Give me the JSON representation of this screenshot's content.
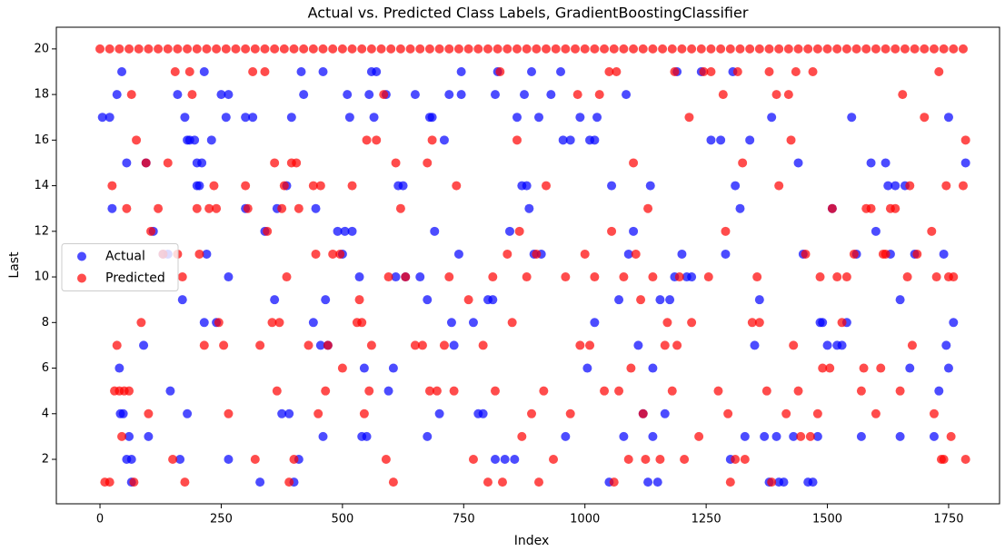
{
  "chart_data": {
    "type": "scatter",
    "title": "Actual vs. Predicted Class Labels, GradientBoostingClassifier",
    "x_label": "Index",
    "y_label": "Last",
    "xlim": [
      -90,
      1855
    ],
    "ylim": [
      0.05,
      20.95
    ],
    "xticks": [
      0,
      250,
      500,
      750,
      1000,
      1250,
      1500,
      1750
    ],
    "yticks": [
      2,
      4,
      6,
      8,
      10,
      12,
      14,
      16,
      18,
      20
    ],
    "legend": "center left",
    "alpha": 0.7,
    "series": [
      {
        "name": "Actual",
        "color": "#0000ff",
        "x": [
          5,
          20,
          25,
          35,
          40,
          45,
          42,
          48,
          55,
          55,
          60,
          65,
          65,
          90,
          95,
          100,
          110,
          130,
          140,
          145,
          160,
          165,
          170,
          175,
          180,
          180,
          185,
          195,
          200,
          200,
          205,
          210,
          215,
          215,
          220,
          230,
          240,
          250,
          260,
          265,
          265,
          265,
          300,
          300,
          315,
          330,
          340,
          360,
          365,
          375,
          385,
          390,
          395,
          400,
          410,
          415,
          420,
          440,
          445,
          455,
          460,
          460,
          465,
          470,
          490,
          500,
          505,
          510,
          515,
          520,
          535,
          540,
          545,
          550,
          555,
          560,
          565,
          570,
          590,
          595,
          605,
          610,
          615,
          625,
          630,
          650,
          660,
          675,
          675,
          680,
          685,
          690,
          700,
          710,
          720,
          725,
          730,
          740,
          745,
          745,
          770,
          780,
          790,
          800,
          810,
          815,
          815,
          820,
          835,
          845,
          855,
          860,
          870,
          875,
          880,
          885,
          890,
          895,
          905,
          910,
          930,
          950,
          955,
          960,
          970,
          990,
          1010,
          1020,
          1020,
          1025,
          1005,
          1050,
          1055,
          1070,
          1080,
          1085,
          1090,
          1100,
          1110,
          1120,
          1130,
          1135,
          1140,
          1140,
          1150,
          1155,
          1165,
          1175,
          1185,
          1190,
          1200,
          1210,
          1220,
          1240,
          1260,
          1280,
          1290,
          1300,
          1305,
          1310,
          1320,
          1330,
          1340,
          1350,
          1360,
          1370,
          1380,
          1385,
          1395,
          1400,
          1410,
          1430,
          1440,
          1450,
          1460,
          1470,
          1480,
          1485,
          1490,
          1500,
          1510,
          1520,
          1530,
          1540,
          1550,
          1560,
          1570,
          1590,
          1600,
          1620,
          1625,
          1630,
          1640,
          1650,
          1650,
          1660,
          1670,
          1680,
          1720,
          1730,
          1740,
          1745,
          1750,
          1750,
          1760,
          1785
        ],
        "values": [
          17,
          17,
          13,
          18,
          6,
          19,
          4,
          4,
          15,
          2,
          3,
          2,
          1,
          7,
          15,
          3,
          12,
          11,
          11,
          5,
          18,
          2,
          9,
          17,
          16,
          4,
          16,
          16,
          14,
          15,
          14,
          15,
          19,
          8,
          11,
          16,
          8,
          18,
          17,
          18,
          10,
          2,
          17,
          13,
          17,
          1,
          12,
          9,
          13,
          4,
          14,
          4,
          17,
          1,
          2,
          19,
          18,
          8,
          13,
          7,
          19,
          3,
          9,
          7,
          12,
          11,
          12,
          18,
          17,
          12,
          10,
          3,
          6,
          3,
          18,
          19,
          17,
          19,
          18,
          5,
          6,
          10,
          14,
          14,
          10,
          18,
          10,
          9,
          3,
          17,
          17,
          12,
          4,
          16,
          18,
          8,
          7,
          11,
          19,
          18,
          8,
          4,
          4,
          9,
          9,
          18,
          2,
          19,
          2,
          12,
          2,
          17,
          14,
          18,
          14,
          13,
          19,
          11,
          17,
          11,
          18,
          19,
          16,
          3,
          16,
          17,
          16,
          16,
          8,
          17,
          6,
          1,
          14,
          9,
          3,
          18,
          11,
          12,
          7,
          4,
          1,
          14,
          6,
          3,
          1,
          9,
          4,
          9,
          10,
          19,
          11,
          10,
          10,
          19,
          16,
          16,
          11,
          2,
          19,
          14,
          13,
          3,
          16,
          7,
          9,
          3,
          1,
          17,
          3,
          1,
          1,
          3,
          15,
          11,
          1,
          1,
          3,
          8,
          8,
          7,
          13,
          7,
          7,
          8,
          17,
          11,
          3,
          15,
          12,
          15,
          14,
          11,
          14,
          9,
          3,
          14,
          6,
          11,
          3,
          5,
          11,
          7,
          6,
          17,
          8,
          15
        ]
      },
      {
        "name": "Predicted",
        "color": "#ff0000",
        "x": [
          10,
          20,
          25,
          30,
          35,
          40,
          45,
          50,
          55,
          60,
          65,
          70,
          75,
          85,
          95,
          100,
          105,
          120,
          130,
          140,
          150,
          155,
          160,
          170,
          175,
          185,
          190,
          200,
          205,
          215,
          225,
          235,
          240,
          245,
          255,
          265,
          300,
          305,
          315,
          320,
          330,
          340,
          345,
          355,
          360,
          365,
          370,
          375,
          380,
          385,
          390,
          395,
          400,
          405,
          410,
          430,
          440,
          445,
          450,
          455,
          465,
          470,
          480,
          495,
          500,
          520,
          530,
          535,
          540,
          545,
          550,
          555,
          560,
          570,
          585,
          590,
          595,
          605,
          610,
          620,
          630,
          650,
          665,
          675,
          680,
          685,
          695,
          710,
          720,
          730,
          735,
          760,
          770,
          790,
          800,
          810,
          815,
          825,
          830,
          840,
          850,
          860,
          865,
          870,
          880,
          890,
          900,
          905,
          915,
          920,
          935,
          960,
          970,
          985,
          990,
          1000,
          1010,
          1020,
          1030,
          1040,
          1050,
          1055,
          1060,
          1065,
          1070,
          1080,
          1090,
          1095,
          1100,
          1105,
          1115,
          1120,
          1125,
          1130,
          1140,
          1155,
          1165,
          1170,
          1180,
          1185,
          1190,
          1195,
          1205,
          1215,
          1220,
          1235,
          1245,
          1255,
          1260,
          1275,
          1285,
          1290,
          1295,
          1300,
          1310,
          1315,
          1325,
          1330,
          1345,
          1355,
          1360,
          1375,
          1380,
          1385,
          1395,
          1400,
          1415,
          1420,
          1425,
          1430,
          1435,
          1440,
          1445,
          1455,
          1465,
          1470,
          1480,
          1485,
          1490,
          1505,
          1510,
          1520,
          1530,
          1540,
          1555,
          1570,
          1575,
          1580,
          1590,
          1600,
          1610,
          1615,
          1620,
          1630,
          1640,
          1650,
          1655,
          1665,
          1670,
          1675,
          1685,
          1700,
          1715,
          1720,
          1725,
          1730,
          1735,
          1740,
          1745,
          1750,
          1755,
          1760,
          1780,
          1785,
          1785,
          0,
          20,
          40,
          60,
          80,
          100,
          120,
          140,
          160,
          180,
          200,
          220,
          240,
          260,
          280,
          300,
          320,
          340,
          360,
          380,
          400,
          420,
          440,
          460,
          480,
          500,
          520,
          540,
          560,
          580,
          600,
          620,
          640,
          660,
          680,
          700,
          720,
          740,
          760,
          780,
          800,
          820,
          840,
          860,
          880,
          900,
          920,
          940,
          960,
          980,
          1000,
          1020,
          1040,
          1060,
          1080,
          1100,
          1120,
          1140,
          1160,
          1180,
          1200,
          1220,
          1240,
          1260,
          1280,
          1300,
          1320,
          1340,
          1360,
          1380,
          1400,
          1420,
          1440,
          1460,
          1480,
          1500,
          1520,
          1540,
          1560,
          1580,
          1600,
          1620,
          1640,
          1660,
          1680,
          1700,
          1720,
          1740,
          1760,
          1780
        ],
        "values": [
          1,
          1,
          14,
          5,
          7,
          5,
          3,
          5,
          13,
          5,
          18,
          1,
          16,
          8,
          15,
          4,
          12,
          13,
          11,
          15,
          2,
          19,
          11,
          10,
          1,
          19,
          18,
          13,
          11,
          7,
          13,
          14,
          13,
          8,
          7,
          4,
          14,
          13,
          19,
          2,
          7,
          19,
          12,
          8,
          15,
          5,
          8,
          13,
          14,
          10,
          1,
          15,
          2,
          15,
          13,
          7,
          14,
          11,
          4,
          14,
          5,
          7,
          11,
          11,
          6,
          14,
          8,
          9,
          8,
          4,
          16,
          5,
          7,
          16,
          18,
          2,
          10,
          1,
          15,
          13,
          10,
          7,
          7,
          15,
          5,
          16,
          5,
          7,
          10,
          5,
          14,
          9,
          2,
          7,
          1,
          10,
          5,
          19,
          1,
          11,
          8,
          16,
          12,
          3,
          10,
          4,
          11,
          1,
          5,
          14,
          2,
          10,
          4,
          18,
          7,
          11,
          7,
          10,
          18,
          5,
          19,
          12,
          1,
          19,
          5,
          10,
          2,
          6,
          15,
          11,
          9,
          4,
          2,
          13,
          10,
          2,
          7,
          8,
          5,
          19,
          7,
          10,
          2,
          17,
          8,
          3,
          19,
          10,
          19,
          5,
          18,
          12,
          4,
          1,
          2,
          19,
          15,
          2,
          8,
          10,
          8,
          5,
          19,
          1,
          18,
          14,
          4,
          18,
          16,
          7,
          19,
          5,
          3,
          11,
          3,
          19,
          4,
          10,
          6,
          6,
          13,
          10,
          8,
          10,
          11,
          5,
          6,
          13,
          13,
          4,
          6,
          11,
          11,
          13,
          13,
          5,
          18,
          10,
          14,
          7,
          11,
          17,
          12,
          4,
          10,
          19,
          2,
          2,
          14,
          10,
          3,
          10,
          14,
          16,
          2,
          20,
          20,
          20,
          20,
          20,
          20,
          20,
          20,
          20,
          20,
          20,
          20,
          20,
          20,
          20,
          20,
          20,
          20,
          20,
          20,
          20,
          20,
          20,
          20,
          20,
          20,
          20,
          20,
          20,
          20,
          20,
          20,
          20,
          20,
          20,
          20,
          20,
          20,
          20,
          20,
          20,
          20,
          20,
          20,
          20,
          20,
          20,
          20,
          20,
          20,
          20,
          20,
          20,
          20,
          20,
          20,
          20,
          20,
          20,
          20,
          20,
          20,
          20,
          20,
          20,
          20,
          20,
          20,
          20,
          20,
          20,
          20,
          20,
          20,
          20,
          20,
          20,
          20,
          20,
          20,
          20,
          20,
          20,
          20,
          20,
          20,
          20,
          20,
          20,
          20
        ]
      }
    ]
  }
}
